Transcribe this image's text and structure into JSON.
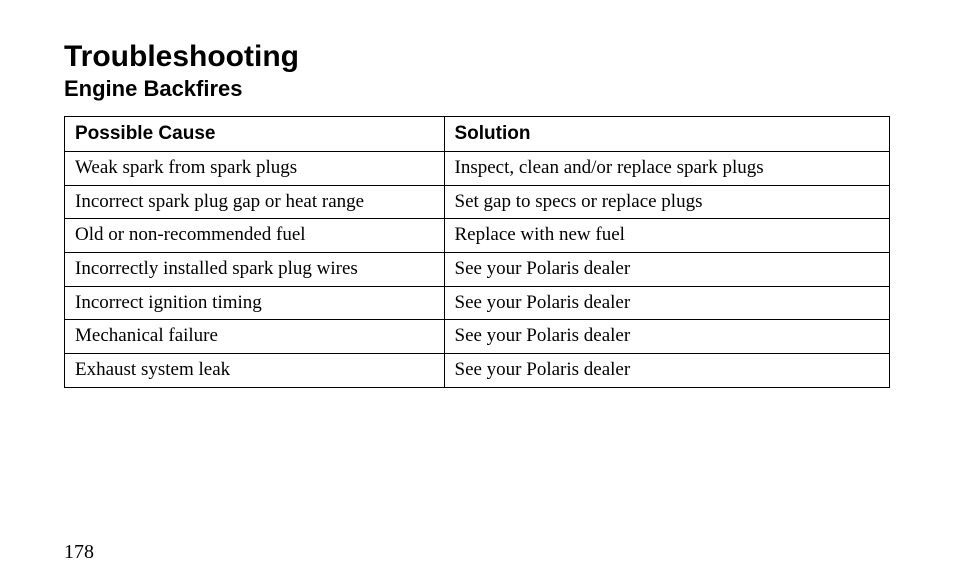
{
  "heading": {
    "title": "Troubleshooting",
    "subtitle": "Engine Backfires"
  },
  "table": {
    "columns": [
      "Possible Cause",
      "Solution"
    ],
    "rows": [
      [
        "Weak spark from spark plugs",
        "Inspect, clean and/or replace spark plugs"
      ],
      [
        "Incorrect spark plug gap or heat range",
        "Set gap to specs or replace plugs"
      ],
      [
        "Old or non-recommended fuel",
        "Replace with new fuel"
      ],
      [
        "Incorrectly installed spark plug wires",
        "See your Polaris dealer"
      ],
      [
        "Incorrect ignition timing",
        "See your Polaris dealer"
      ],
      [
        "Mechanical failure",
        "See your Polaris dealer"
      ],
      [
        "Exhaust system leak",
        "See your Polaris dealer"
      ]
    ],
    "col_widths_pct": [
      46,
      54
    ],
    "border_color": "#000000",
    "header_font": "Helvetica",
    "header_fontsize": 19,
    "body_font": "Times New Roman",
    "body_fontsize": 19
  },
  "page_number": "178",
  "background_color": "#ffffff",
  "text_color": "#000000"
}
